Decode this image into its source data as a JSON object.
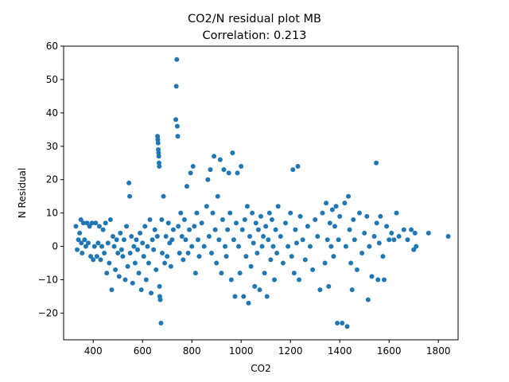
{
  "chart_data": {
    "type": "scatter",
    "title_line1": "CO2/N residual plot MB",
    "title_line2": "Correlation: 0.213",
    "xlabel": "CO2",
    "ylabel": "N Residual",
    "xlim": [
      280,
      1880
    ],
    "ylim": [
      -28,
      60
    ],
    "xticks": [
      400,
      600,
      800,
      1000,
      1200,
      1400,
      1600,
      1800
    ],
    "yticks": [
      -20,
      -10,
      0,
      10,
      20,
      30,
      40,
      50,
      60
    ],
    "grid": false,
    "marker_color": "#1f77b4",
    "points": [
      [
        330,
        6
      ],
      [
        335,
        -1
      ],
      [
        340,
        2
      ],
      [
        345,
        4
      ],
      [
        350,
        8
      ],
      [
        352,
        1
      ],
      [
        355,
        -2
      ],
      [
        360,
        7
      ],
      [
        365,
        2
      ],
      [
        370,
        0
      ],
      [
        375,
        7
      ],
      [
        380,
        1
      ],
      [
        385,
        6
      ],
      [
        390,
        -3
      ],
      [
        395,
        7
      ],
      [
        400,
        -4
      ],
      [
        405,
        0
      ],
      [
        410,
        7
      ],
      [
        415,
        -3
      ],
      [
        420,
        1
      ],
      [
        425,
        6
      ],
      [
        430,
        -4
      ],
      [
        435,
        0
      ],
      [
        440,
        5
      ],
      [
        445,
        -2
      ],
      [
        450,
        7
      ],
      [
        455,
        -8
      ],
      [
        460,
        1
      ],
      [
        465,
        -5
      ],
      [
        470,
        8
      ],
      [
        475,
        -13
      ],
      [
        480,
        3
      ],
      [
        485,
        0
      ],
      [
        490,
        -7
      ],
      [
        495,
        2
      ],
      [
        500,
        -2
      ],
      [
        505,
        -9
      ],
      [
        510,
        4
      ],
      [
        515,
        -1
      ],
      [
        520,
        -3
      ],
      [
        525,
        2
      ],
      [
        530,
        -10
      ],
      [
        535,
        6
      ],
      [
        540,
        -6
      ],
      [
        545,
        19
      ],
      [
        548,
        15
      ],
      [
        550,
        -2
      ],
      [
        555,
        3
      ],
      [
        560,
        -11
      ],
      [
        565,
        0
      ],
      [
        570,
        -5
      ],
      [
        575,
        2
      ],
      [
        580,
        -1
      ],
      [
        585,
        -8
      ],
      [
        590,
        4
      ],
      [
        595,
        -13
      ],
      [
        600,
        1
      ],
      [
        605,
        -3
      ],
      [
        610,
        6
      ],
      [
        615,
        -10
      ],
      [
        620,
        0
      ],
      [
        625,
        -5
      ],
      [
        630,
        8
      ],
      [
        635,
        -14
      ],
      [
        640,
        2
      ],
      [
        645,
        -1
      ],
      [
        650,
        5
      ],
      [
        655,
        -7
      ],
      [
        660,
        3
      ],
      [
        661,
        33
      ],
      [
        662,
        32
      ],
      [
        663,
        31
      ],
      [
        664,
        29
      ],
      [
        665,
        28
      ],
      [
        666,
        27
      ],
      [
        667,
        25
      ],
      [
        668,
        24
      ],
      [
        669,
        -12
      ],
      [
        670,
        -15
      ],
      [
        672,
        -16
      ],
      [
        675,
        -23
      ],
      [
        678,
        8
      ],
      [
        680,
        -2
      ],
      [
        685,
        15
      ],
      [
        690,
        -5
      ],
      [
        695,
        3
      ],
      [
        700,
        -3
      ],
      [
        705,
        7
      ],
      [
        710,
        1
      ],
      [
        715,
        -6
      ],
      [
        720,
        2
      ],
      [
        725,
        5
      ],
      [
        735,
        38
      ],
      [
        737,
        48
      ],
      [
        739,
        56
      ],
      [
        741,
        36
      ],
      [
        743,
        33
      ],
      [
        745,
        6
      ],
      [
        750,
        -2
      ],
      [
        755,
        10
      ],
      [
        760,
        3
      ],
      [
        765,
        -4
      ],
      [
        770,
        8
      ],
      [
        775,
        2
      ],
      [
        780,
        18
      ],
      [
        785,
        -2
      ],
      [
        790,
        5
      ],
      [
        795,
        22
      ],
      [
        800,
        0
      ],
      [
        805,
        24
      ],
      [
        810,
        6
      ],
      [
        815,
        -8
      ],
      [
        820,
        10
      ],
      [
        825,
        2
      ],
      [
        830,
        -3
      ],
      [
        840,
        7
      ],
      [
        850,
        0
      ],
      [
        860,
        12
      ],
      [
        865,
        20
      ],
      [
        870,
        3
      ],
      [
        875,
        23
      ],
      [
        880,
        -2
      ],
      [
        885,
        10
      ],
      [
        890,
        27
      ],
      [
        895,
        5
      ],
      [
        900,
        -5
      ],
      [
        905,
        15
      ],
      [
        910,
        2
      ],
      [
        915,
        26
      ],
      [
        920,
        -8
      ],
      [
        925,
        8
      ],
      [
        930,
        23
      ],
      [
        935,
        0
      ],
      [
        940,
        -3
      ],
      [
        945,
        5
      ],
      [
        950,
        22
      ],
      [
        955,
        10
      ],
      [
        960,
        -10
      ],
      [
        965,
        28
      ],
      [
        970,
        2
      ],
      [
        975,
        -15
      ],
      [
        980,
        7
      ],
      [
        985,
        22
      ],
      [
        990,
        0
      ],
      [
        995,
        -8
      ],
      [
        1000,
        24
      ],
      [
        1005,
        5
      ],
      [
        1010,
        -15
      ],
      [
        1015,
        8
      ],
      [
        1020,
        -3
      ],
      [
        1025,
        12
      ],
      [
        1030,
        -17
      ],
      [
        1035,
        3
      ],
      [
        1040,
        -6
      ],
      [
        1045,
        10
      ],
      [
        1050,
        1
      ],
      [
        1055,
        -12
      ],
      [
        1060,
        7
      ],
      [
        1065,
        -2
      ],
      [
        1070,
        5
      ],
      [
        1075,
        -13
      ],
      [
        1080,
        9
      ],
      [
        1085,
        0
      ],
      [
        1090,
        3
      ],
      [
        1095,
        -8
      ],
      [
        1100,
        6
      ],
      [
        1105,
        -15
      ],
      [
        1110,
        2
      ],
      [
        1115,
        10
      ],
      [
        1120,
        -4
      ],
      [
        1125,
        8
      ],
      [
        1130,
        0
      ],
      [
        1135,
        -10
      ],
      [
        1140,
        5
      ],
      [
        1145,
        -2
      ],
      [
        1150,
        12
      ],
      [
        1160,
        3
      ],
      [
        1170,
        -5
      ],
      [
        1180,
        7
      ],
      [
        1190,
        0
      ],
      [
        1200,
        10
      ],
      [
        1205,
        -3
      ],
      [
        1210,
        23
      ],
      [
        1215,
        -8
      ],
      [
        1220,
        5
      ],
      [
        1225,
        1
      ],
      [
        1230,
        24
      ],
      [
        1235,
        -10
      ],
      [
        1240,
        9
      ],
      [
        1250,
        2
      ],
      [
        1260,
        -4
      ],
      [
        1270,
        6
      ],
      [
        1280,
        0
      ],
      [
        1290,
        -7
      ],
      [
        1300,
        8
      ],
      [
        1310,
        3
      ],
      [
        1320,
        -13
      ],
      [
        1330,
        10
      ],
      [
        1340,
        -5
      ],
      [
        1345,
        13
      ],
      [
        1350,
        2
      ],
      [
        1355,
        -12
      ],
      [
        1360,
        7
      ],
      [
        1365,
        0
      ],
      [
        1370,
        11
      ],
      [
        1375,
        -3
      ],
      [
        1380,
        6
      ],
      [
        1385,
        12
      ],
      [
        1390,
        -23
      ],
      [
        1395,
        2
      ],
      [
        1400,
        9
      ],
      [
        1410,
        -23
      ],
      [
        1420,
        13
      ],
      [
        1425,
        0
      ],
      [
        1430,
        -24
      ],
      [
        1435,
        15
      ],
      [
        1440,
        5
      ],
      [
        1445,
        -5
      ],
      [
        1450,
        -13
      ],
      [
        1455,
        8
      ],
      [
        1460,
        2
      ],
      [
        1470,
        -7
      ],
      [
        1480,
        10
      ],
      [
        1490,
        -2
      ],
      [
        1500,
        4
      ],
      [
        1510,
        9
      ],
      [
        1515,
        -16
      ],
      [
        1520,
        0
      ],
      [
        1530,
        -9
      ],
      [
        1540,
        3
      ],
      [
        1548,
        25
      ],
      [
        1550,
        7
      ],
      [
        1555,
        -10
      ],
      [
        1560,
        1
      ],
      [
        1565,
        9
      ],
      [
        1575,
        -3
      ],
      [
        1580,
        -10
      ],
      [
        1590,
        6
      ],
      [
        1600,
        2
      ],
      [
        1610,
        4
      ],
      [
        1620,
        2
      ],
      [
        1630,
        10
      ],
      [
        1640,
        3
      ],
      [
        1660,
        5
      ],
      [
        1675,
        2
      ],
      [
        1690,
        5
      ],
      [
        1700,
        -1
      ],
      [
        1705,
        4
      ],
      [
        1710,
        0
      ],
      [
        1760,
        4
      ],
      [
        1840,
        3
      ]
    ]
  }
}
